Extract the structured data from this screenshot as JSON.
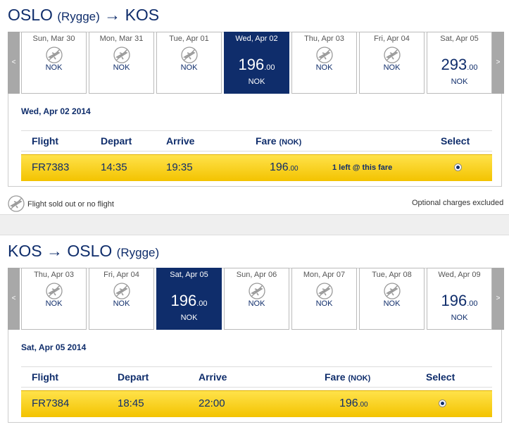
{
  "outbound": {
    "from": "OSLO",
    "from_note": "(Rygge)",
    "arrow": "→",
    "to": "KOS",
    "nav_prev": "<",
    "nav_next": ">",
    "days": [
      {
        "label": "Sun, Mar 30",
        "currency": "NOK"
      },
      {
        "label": "Mon, Mar 31",
        "currency": "NOK"
      },
      {
        "label": "Tue, Apr 01",
        "currency": "NOK"
      },
      {
        "label": "Wed, Apr 02",
        "price": "196",
        "cents": ".00",
        "currency": "NOK",
        "selected": true
      },
      {
        "label": "Thu, Apr 03",
        "currency": "NOK"
      },
      {
        "label": "Fri, Apr 04",
        "currency": "NOK"
      },
      {
        "label": "Sat, Apr 05",
        "price": "293",
        "cents": ".00",
        "currency": "NOK"
      }
    ],
    "selected_date": "Wed, Apr 02 2014",
    "table": {
      "headers": {
        "flight": "Flight",
        "depart": "Depart",
        "arrive": "Arrive",
        "fare": "Fare",
        "fare_unit": "(NOK)",
        "select": "Select"
      },
      "row": {
        "flight": "FR7383",
        "depart": "14:35",
        "arrive": "19:35",
        "fare": "196",
        "fare_cents": ".00",
        "note": "1 left @ this fare"
      }
    }
  },
  "legend": {
    "sold_out": "Flight sold out or no flight",
    "charges": "Optional charges excluded"
  },
  "return": {
    "from": "KOS",
    "arrow": "→",
    "to": "OSLO",
    "to_note": "(Rygge)",
    "nav_prev": "<",
    "nav_next": ">",
    "days": [
      {
        "label": "Thu, Apr 03",
        "currency": "NOK"
      },
      {
        "label": "Fri, Apr 04",
        "currency": "NOK"
      },
      {
        "label": "Sat, Apr 05",
        "price": "196",
        "cents": ".00",
        "currency": "NOK",
        "selected": true
      },
      {
        "label": "Sun, Apr 06",
        "currency": "NOK"
      },
      {
        "label": "Mon, Apr 07",
        "currency": "NOK"
      },
      {
        "label": "Tue, Apr 08",
        "currency": "NOK"
      },
      {
        "label": "Wed, Apr 09",
        "price": "196",
        "cents": ".00",
        "currency": "NOK"
      }
    ],
    "selected_date": "Sat, Apr 05 2014",
    "table": {
      "headers": {
        "flight": "Flight",
        "depart": "Depart",
        "arrive": "Arrive",
        "fare": "Fare",
        "fare_unit": "(NOK)",
        "select": "Select"
      },
      "row": {
        "flight": "FR7384",
        "depart": "18:45",
        "arrive": "22:00",
        "fare": "196",
        "fare_cents": ".00"
      }
    }
  }
}
